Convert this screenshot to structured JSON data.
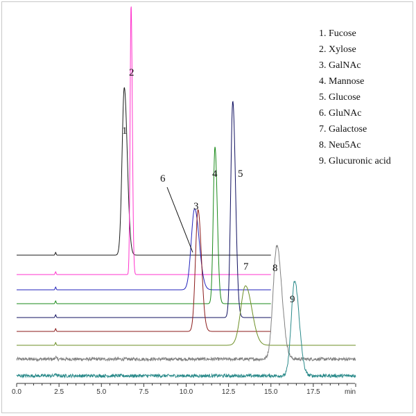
{
  "chart_data": {
    "type": "line",
    "title": "",
    "xlabel": "",
    "ylabel": "",
    "x_unit": "min",
    "xlim": [
      0,
      20
    ],
    "x_ticks": [
      "0.0",
      "2.5",
      "5.0",
      "7.5",
      "10.0",
      "12.5",
      "15.0",
      "17.5"
    ],
    "grid": false,
    "legend_position": "top-right",
    "legend": [
      "1.  Fucose",
      "2.  Xylose",
      "3.  GalNAc",
      "4.  Mannose",
      "5.  Glucose",
      "6.  GluNAc",
      "7.  Galactose",
      "8.  Neu5Ac",
      "9.  Glucuronic acid"
    ],
    "series": [
      {
        "label": "1",
        "color": "#1a1a1a",
        "peak_time": 6.35,
        "sigma": 0.13,
        "relative_height": 0.62,
        "trace_end": 15.0,
        "noise": 0.0,
        "start_blip": 2.3
      },
      {
        "label": "2",
        "color": "#ff33cc",
        "peak_time": 6.75,
        "sigma": 0.055,
        "relative_height": 1.0,
        "trace_end": 15.0,
        "noise": 0.0,
        "start_blip": 2.3
      },
      {
        "label": "3",
        "color": "#2222bb",
        "peak_time": 10.5,
        "sigma": 0.2,
        "relative_height": 0.3,
        "trace_end": 15.0,
        "noise": 0.0,
        "start_blip": 2.3
      },
      {
        "label": "4",
        "color": "#1a8a1a",
        "peak_time": 11.7,
        "sigma": 0.1,
        "relative_height": 0.58,
        "trace_end": 15.0,
        "noise": 0.0,
        "start_blip": 2.3
      },
      {
        "label": "5",
        "color": "#101060",
        "peak_time": 12.75,
        "sigma": 0.12,
        "relative_height": 0.8,
        "trace_end": 15.0,
        "noise": 0.0,
        "start_blip": 2.3
      },
      {
        "label": "6",
        "color": "#8b1a1a",
        "peak_time": 10.7,
        "sigma": 0.15,
        "relative_height": 0.45,
        "trace_end": 15.0,
        "noise": 0.0,
        "start_blip": 2.3
      },
      {
        "label": "7",
        "color": "#6b8e23",
        "peak_time": 13.5,
        "sigma": 0.28,
        "relative_height": 0.22,
        "trace_end": 20.0,
        "noise": 0.0,
        "start_blip": 2.3
      },
      {
        "label": "8",
        "color": "#808080",
        "peak_time": 15.35,
        "sigma": 0.22,
        "relative_height": 0.42,
        "trace_end": 20.0,
        "noise": 0.012,
        "start_blip": 2.3
      },
      {
        "label": "9",
        "color": "#2a8a8a",
        "peak_time": 16.4,
        "sigma": 0.2,
        "relative_height": 0.35,
        "trace_end": 20.0,
        "noise": 0.012,
        "start_blip": 2.3
      }
    ]
  }
}
